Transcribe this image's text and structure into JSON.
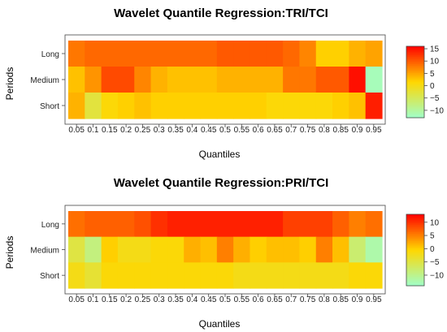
{
  "chart_data": [
    {
      "type": "heatmap",
      "title": "Wavelet Quantile Regression:TRI/TCI",
      "xlabel": "Quantiles",
      "ylabel": "Periods",
      "x": [
        "0.05",
        "0.1",
        "0.15",
        "0.2",
        "0.25",
        "0.3",
        "0.35",
        "0.4",
        "0.45",
        "0.5",
        "0.55",
        "0.6",
        "0.65",
        "0.7",
        "0.75",
        "0.8",
        "0.85",
        "0.9",
        "0.95"
      ],
      "y": [
        "Long",
        "Medium",
        "Short"
      ],
      "values": [
        [
          8,
          9,
          9,
          9,
          9,
          9,
          9,
          9,
          9,
          10,
          10,
          10,
          10,
          9,
          7,
          2,
          2,
          4,
          5
        ],
        [
          3,
          6,
          11,
          11,
          7,
          4,
          3,
          3,
          3,
          4,
          4,
          4,
          4,
          8,
          8,
          10,
          10,
          15,
          -12
        ],
        [
          4,
          -3,
          1,
          2,
          3,
          2,
          2,
          2,
          2,
          2,
          2,
          2,
          1,
          1,
          1,
          1,
          2,
          3,
          14
        ]
      ],
      "colorbar": {
        "range": [
          -13,
          16
        ],
        "ticks": [
          15,
          10,
          5,
          0,
          -5,
          -10
        ],
        "tick_labels": [
          "15",
          "10",
          "5",
          "0",
          "−5",
          "−10"
        ]
      },
      "colormap": [
        "#ff0000",
        "#ffd700",
        "#a0ffc8"
      ]
    },
    {
      "type": "heatmap",
      "title": "Wavelet Quantile Regression:PRI/TCI",
      "xlabel": "Quantiles",
      "ylabel": "Periods",
      "x": [
        "0.05",
        "0.1",
        "0.15",
        "0.2",
        "0.25",
        "0.3",
        "0.35",
        "0.4",
        "0.45",
        "0.5",
        "0.55",
        "0.6",
        "0.65",
        "0.7",
        "0.75",
        "0.8",
        "0.85",
        "0.9",
        "0.95"
      ],
      "y": [
        "Long",
        "Medium",
        "Short"
      ],
      "values": [
        [
          6,
          7,
          7,
          7,
          8,
          10,
          11,
          11,
          11,
          11,
          11,
          11,
          11,
          9,
          9,
          9,
          7,
          5,
          6
        ],
        [
          -5,
          -9,
          0,
          -2,
          -2,
          -1,
          -1,
          2,
          1,
          5,
          2,
          0,
          1,
          1,
          0,
          5,
          1,
          -8,
          -12
        ],
        [
          -2,
          -4,
          -1,
          -1,
          -1,
          -1,
          -1,
          -1,
          -1,
          -1,
          -2,
          -2,
          -2,
          -2,
          -2,
          -2,
          -2,
          -1,
          -1
        ]
      ],
      "colorbar": {
        "range": [
          -14,
          13
        ],
        "ticks": [
          10,
          5,
          0,
          -5,
          -10
        ],
        "tick_labels": [
          "10",
          "5",
          "0",
          "−5",
          "−10"
        ]
      },
      "colormap": [
        "#ff0000",
        "#ffd700",
        "#a0ffc8"
      ]
    }
  ]
}
